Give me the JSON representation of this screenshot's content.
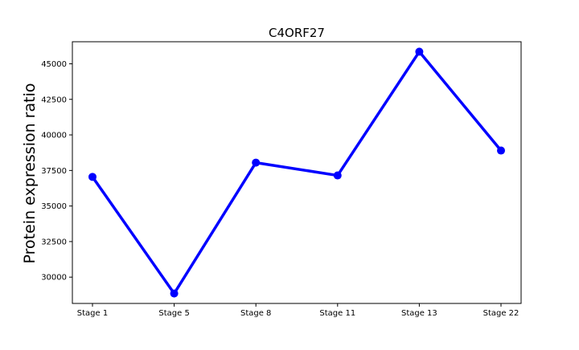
{
  "chart_data": {
    "type": "line",
    "title": "C4ORF27",
    "xlabel": "",
    "ylabel": "Protein expression ratio",
    "categories": [
      "Stage 1",
      "Stage 5",
      "Stage 8",
      "Stage 11",
      "Stage 13",
      "Stage 22"
    ],
    "series": [
      {
        "values": [
          37050,
          28850,
          38050,
          37150,
          45850,
          38900
        ],
        "color": "#0000ff"
      }
    ],
    "ylim": [
      28150,
      46550
    ],
    "yticks": [
      30000,
      32500,
      35000,
      37500,
      40000,
      42500,
      45000
    ],
    "ytick_labels": [
      "30000",
      "32500",
      "35000",
      "37500",
      "40000",
      "42500",
      "45000"
    ],
    "grid": false,
    "legend": "none"
  }
}
